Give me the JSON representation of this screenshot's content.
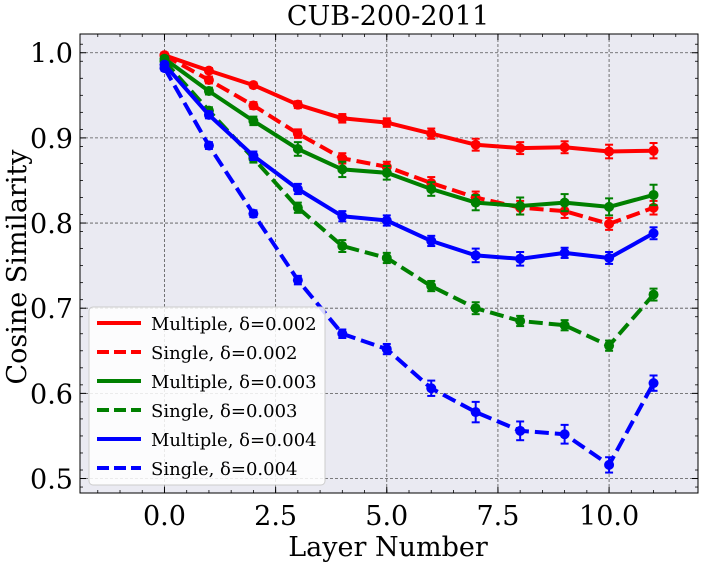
{
  "chart_data": {
    "type": "line",
    "title": "CUB-200-2011",
    "xlabel": "Layer Number",
    "ylabel": "Cosine Similarity",
    "xlim": [
      -1.9,
      12.0
    ],
    "ylim": [
      0.483,
      1.022
    ],
    "xticks": [
      0.0,
      2.5,
      5.0,
      7.5,
      10.0
    ],
    "xtick_labels": [
      "0.0",
      "2.5",
      "5.0",
      "7.5",
      "10.0"
    ],
    "yticks": [
      0.5,
      0.6,
      0.7,
      0.8,
      0.9,
      1.0
    ],
    "ytick_labels": [
      "0.5",
      "0.6",
      "0.7",
      "0.8",
      "0.9",
      "1.0"
    ],
    "grid": true,
    "legend_position": "lower-left",
    "x": [
      0,
      1,
      2,
      3,
      4,
      5,
      6,
      7,
      8,
      9,
      10,
      11
    ],
    "series": [
      {
        "name": "Multiple, δ=0.002",
        "color": "#ff0000",
        "dash": "solid",
        "values": [
          0.997,
          0.979,
          0.962,
          0.939,
          0.923,
          0.918,
          0.905,
          0.892,
          0.888,
          0.889,
          0.884,
          0.885
        ],
        "errors": [
          0.003,
          0.003,
          0.003,
          0.004,
          0.005,
          0.005,
          0.006,
          0.007,
          0.007,
          0.007,
          0.008,
          0.009
        ]
      },
      {
        "name": "Single, δ=0.002",
        "color": "#ff0000",
        "dash": "dashed",
        "values": [
          0.997,
          0.968,
          0.938,
          0.905,
          0.876,
          0.866,
          0.847,
          0.83,
          0.818,
          0.814,
          0.799,
          0.818
        ],
        "errors": [
          0.003,
          0.004,
          0.004,
          0.005,
          0.006,
          0.006,
          0.007,
          0.007,
          0.008,
          0.008,
          0.007,
          0.008
        ]
      },
      {
        "name": "Multiple, δ=0.003",
        "color": "#008000",
        "dash": "solid",
        "values": [
          0.993,
          0.955,
          0.92,
          0.887,
          0.863,
          0.859,
          0.84,
          0.824,
          0.82,
          0.824,
          0.819,
          0.833
        ],
        "errors": [
          0.003,
          0.004,
          0.005,
          0.008,
          0.009,
          0.008,
          0.008,
          0.009,
          0.01,
          0.01,
          0.01,
          0.012
        ]
      },
      {
        "name": "Single, δ=0.003",
        "color": "#008000",
        "dash": "dashed",
        "values": [
          0.99,
          0.932,
          0.876,
          0.818,
          0.773,
          0.759,
          0.726,
          0.7,
          0.685,
          0.68,
          0.656,
          0.716
        ],
        "errors": [
          0.003,
          0.004,
          0.005,
          0.006,
          0.007,
          0.006,
          0.006,
          0.007,
          0.006,
          0.006,
          0.006,
          0.007
        ]
      },
      {
        "name": "Multiple, δ=0.004",
        "color": "#0000ff",
        "dash": "solid",
        "values": [
          0.986,
          0.927,
          0.879,
          0.84,
          0.808,
          0.803,
          0.779,
          0.762,
          0.758,
          0.765,
          0.759,
          0.788
        ],
        "errors": [
          0.003,
          0.004,
          0.005,
          0.006,
          0.006,
          0.006,
          0.006,
          0.008,
          0.008,
          0.006,
          0.007,
          0.007
        ]
      },
      {
        "name": "Single, δ=0.004",
        "color": "#0000ff",
        "dash": "dashed",
        "values": [
          0.982,
          0.891,
          0.811,
          0.733,
          0.67,
          0.652,
          0.606,
          0.578,
          0.556,
          0.552,
          0.516,
          0.612
        ],
        "errors": [
          0.003,
          0.004,
          0.004,
          0.005,
          0.005,
          0.006,
          0.009,
          0.012,
          0.011,
          0.011,
          0.009,
          0.009
        ]
      }
    ]
  }
}
